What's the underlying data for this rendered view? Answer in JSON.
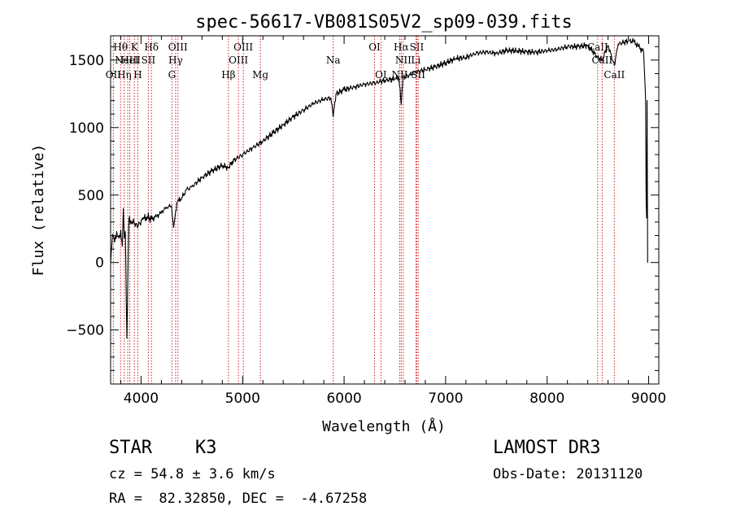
{
  "chart_data": {
    "type": "line",
    "title": "spec-56617-VB081S05V2_sp09-039.fits",
    "xlabel": "Wavelength (Å)",
    "ylabel": "Flux (relative)",
    "xlim": [
      3700,
      9100
    ],
    "ylim": [
      -900,
      1680
    ],
    "xticks": [
      4000,
      5000,
      6000,
      7000,
      8000,
      9000
    ],
    "xtick_labels": [
      "4000",
      "5000",
      "6000",
      "7000",
      "8000",
      "9000"
    ],
    "yticks": [
      -500,
      0,
      500,
      1000,
      1500
    ],
    "ytick_labels": [
      "−500",
      "0",
      "500",
      "1000",
      "1500"
    ],
    "series": [
      {
        "name": "spectrum",
        "x": [
          3700,
          3720,
          3740,
          3760,
          3780,
          3800,
          3815,
          3825,
          3835,
          3845,
          3860,
          3880,
          3900,
          3930,
          3960,
          3990,
          4020,
          4060,
          4100,
          4150,
          4200,
          4250,
          4300,
          4320,
          4340,
          4360,
          4400,
          4450,
          4500,
          4600,
          4700,
          4800,
          4861,
          4900,
          5000,
          5100,
          5200,
          5300,
          5400,
          5500,
          5600,
          5700,
          5800,
          5870,
          5893,
          5920,
          6000,
          6100,
          6200,
          6300,
          6400,
          6500,
          6540,
          6563,
          6580,
          6650,
          6700,
          6800,
          6900,
          7000,
          7100,
          7200,
          7300,
          7400,
          7500,
          7600,
          7700,
          7800,
          7900,
          8000,
          8100,
          8200,
          8300,
          8400,
          8498,
          8542,
          8600,
          8662,
          8700,
          8800,
          8850,
          8900,
          8950,
          8960,
          8970,
          8975,
          8980,
          8985,
          8990
        ],
        "y": [
          -10,
          210,
          150,
          230,
          180,
          240,
          120,
          400,
          180,
          230,
          -560,
          320,
          310,
          300,
          270,
          290,
          320,
          340,
          320,
          340,
          370,
          410,
          420,
          260,
          380,
          450,
          480,
          540,
          560,
          630,
          680,
          720,
          700,
          750,
          800,
          850,
          900,
          960,
          1020,
          1080,
          1130,
          1180,
          1210,
          1220,
          1080,
          1250,
          1280,
          1300,
          1320,
          1330,
          1350,
          1360,
          1370,
          1170,
          1370,
          1390,
          1410,
          1430,
          1450,
          1480,
          1510,
          1520,
          1550,
          1560,
          1550,
          1570,
          1570,
          1560,
          1560,
          1570,
          1580,
          1600,
          1600,
          1610,
          1520,
          1500,
          1610,
          1460,
          1620,
          1640,
          1640,
          1600,
          1560,
          1400,
          1200,
          480,
          330,
          1200,
          -2
        ]
      }
    ],
    "lines": [
      {
        "wave": 3727,
        "label": "OII",
        "row": 3
      },
      {
        "wave": 3798,
        "label": "Hθ",
        "row": 1
      },
      {
        "wave": 3835,
        "label": "Hη",
        "row": 3
      },
      {
        "wave": 3869,
        "label": "NeIII",
        "row": 2
      },
      {
        "wave": 3889,
        "label": "HeI",
        "row": 2
      },
      {
        "wave": 3934,
        "label": "K",
        "row": 1
      },
      {
        "wave": 3968,
        "label": "H",
        "row": 3
      },
      {
        "wave": 4072,
        "label": "SII",
        "row": 2
      },
      {
        "wave": 4102,
        "label": "Hδ",
        "row": 1
      },
      {
        "wave": 4304,
        "label": "G",
        "row": 3
      },
      {
        "wave": 4340,
        "label": "Hγ",
        "row": 2
      },
      {
        "wave": 4363,
        "label": "OIII",
        "row": 1
      },
      {
        "wave": 4861,
        "label": "Hβ",
        "row": 3
      },
      {
        "wave": 4959,
        "label": "OIII",
        "row": 2
      },
      {
        "wave": 5007,
        "label": "OIII",
        "row": 1
      },
      {
        "wave": 5175,
        "label": "Mg",
        "row": 3
      },
      {
        "wave": 5893,
        "label": "Na",
        "row": 2
      },
      {
        "wave": 6300,
        "label": "OI",
        "row": 1
      },
      {
        "wave": 6363,
        "label": "OI",
        "row": 3
      },
      {
        "wave": 6548,
        "label": "NII",
        "row": 3
      },
      {
        "wave": 6563,
        "label": "Hα",
        "row": 1
      },
      {
        "wave": 6583,
        "label": "NII",
        "row": 2
      },
      {
        "wave": 6707,
        "label": "Li",
        "row": 2
      },
      {
        "wave": 6716,
        "label": "SII",
        "row": 1
      },
      {
        "wave": 6730,
        "label": "SII",
        "row": 3
      },
      {
        "wave": 8498,
        "label": "CaII",
        "row": 1
      },
      {
        "wave": 8542,
        "label": "CaII",
        "row": 2
      },
      {
        "wave": 8662,
        "label": "CaII",
        "row": 3
      }
    ]
  },
  "info": {
    "class_label": "STAR",
    "subclass": "K3",
    "survey": "LAMOST DR3",
    "cz_line": "cz = 54.8 ± 3.6 km/s",
    "obs_date": "Obs-Date: 20131120",
    "radec_line": "RA =  82.32850, DEC =  -4.67258"
  },
  "colors": {
    "spectrum": "#000000",
    "line_markers": "#cc2222",
    "background": "#ffffff"
  }
}
